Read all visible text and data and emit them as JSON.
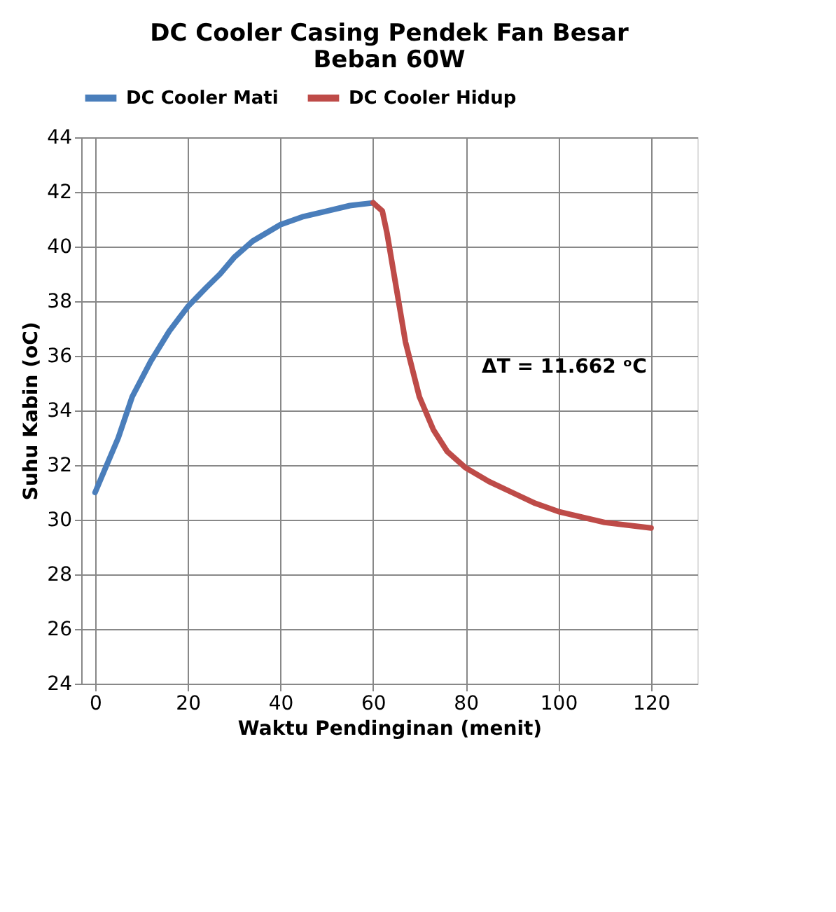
{
  "chart_data": {
    "type": "line",
    "title": "DC Cooler Casing Pendek Fan Besar\nBeban 60W",
    "xlabel": "Waktu Pendinginan (menit)",
    "ylabel": "Suhu Kabin (oC)",
    "series": [
      {
        "name": "DC Cooler Mati",
        "color": "#4a7ebb",
        "x": [
          0,
          2,
          5,
          8,
          12,
          16,
          20,
          24,
          27,
          30,
          34,
          40,
          45,
          50,
          55,
          60
        ],
        "values": [
          31.0,
          31.8,
          33.0,
          34.5,
          35.8,
          36.9,
          37.8,
          38.5,
          39.0,
          39.6,
          40.2,
          40.8,
          41.1,
          41.3,
          41.5,
          41.6
        ]
      },
      {
        "name": "DC Cooler Hidup",
        "color": "#be4b48",
        "x": [
          60,
          62,
          63,
          65,
          67,
          70,
          73,
          76,
          80,
          85,
          90,
          95,
          100,
          110,
          120
        ],
        "values": [
          41.6,
          41.3,
          40.5,
          38.5,
          36.5,
          34.5,
          33.3,
          32.5,
          31.9,
          31.4,
          31.0,
          30.6,
          30.3,
          29.9,
          29.7
        ]
      }
    ],
    "annotations": [
      "ΔT = 11.662 ᵒC"
    ],
    "xlim": [
      -3,
      130
    ],
    "xticks": [
      0,
      20,
      40,
      60,
      80,
      100,
      120
    ],
    "ylim": [
      24,
      44
    ],
    "yticks": [
      24,
      26,
      28,
      30,
      32,
      34,
      36,
      38,
      40,
      42,
      44
    ],
    "grid": true,
    "legend": "top",
    "marker": "none",
    "line_style": "solid"
  }
}
